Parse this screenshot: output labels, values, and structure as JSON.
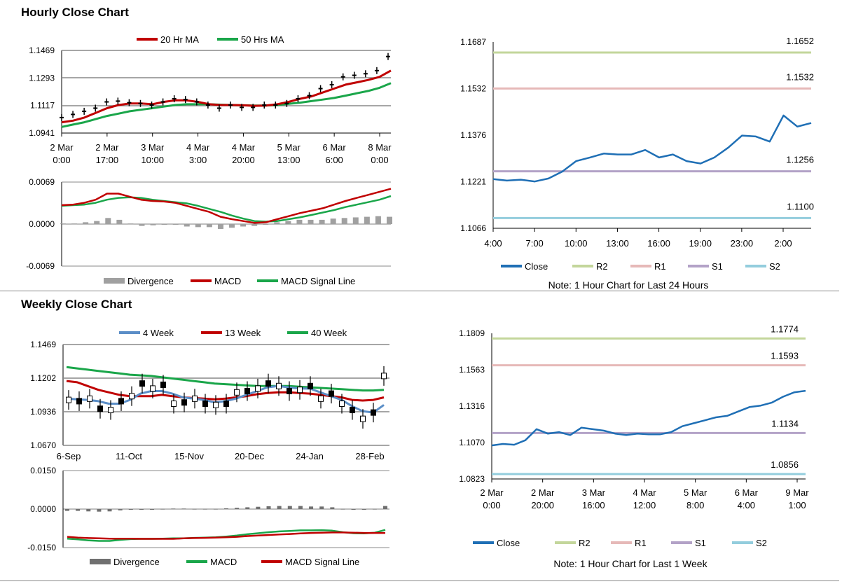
{
  "hourly_section": {
    "title": "Hourly Close Chart"
  },
  "weekly_section": {
    "title": "Weekly Close Chart"
  },
  "colors": {
    "green_ma": "#1aa64a",
    "red_ma": "#c00000",
    "close_blue": "#1f6fb5",
    "r2": "#c3d69b",
    "r1": "#e6b9b8",
    "s1": "#b3a2c7",
    "s2": "#93cddd",
    "grid": "#888888",
    "divergence": "#a0a0a0"
  },
  "chart_data": [
    {
      "id": "hourly_price",
      "type": "candlestick",
      "legend": [
        "20 Hr MA",
        "50 Hrs MA"
      ],
      "x_ticks": [
        [
          "2 Mar",
          "0:00"
        ],
        [
          "2 Mar",
          "17:00"
        ],
        [
          "3 Mar",
          "10:00"
        ],
        [
          "4 Mar",
          "3:00"
        ],
        [
          "4 Mar",
          "20:00"
        ],
        [
          "5 Mar",
          "13:00"
        ],
        [
          "6 Mar",
          "6:00"
        ],
        [
          "8 Mar",
          "0:00"
        ]
      ],
      "y_ticks": [
        "1.1469",
        "1.1293",
        "1.1117",
        "1.0941"
      ],
      "ylim": [
        1.0941,
        1.1469
      ],
      "close": [
        1.104,
        1.106,
        1.108,
        1.11,
        1.114,
        1.1145,
        1.1135,
        1.113,
        1.112,
        1.114,
        1.116,
        1.1155,
        1.114,
        1.112,
        1.11,
        1.112,
        1.1105,
        1.1105,
        1.112,
        1.112,
        1.113,
        1.116,
        1.118,
        1.1225,
        1.125,
        1.13,
        1.131,
        1.132,
        1.134,
        1.143
      ],
      "ma20": [
        1.101,
        1.102,
        1.104,
        1.107,
        1.11,
        1.112,
        1.113,
        1.113,
        1.1125,
        1.114,
        1.115,
        1.115,
        1.114,
        1.1125,
        1.112,
        1.112,
        1.1118,
        1.1115,
        1.1117,
        1.1125,
        1.114,
        1.116,
        1.1175,
        1.12,
        1.1225,
        1.125,
        1.1265,
        1.128,
        1.13,
        1.134
      ],
      "ma50": [
        1.098,
        1.0995,
        1.101,
        1.103,
        1.105,
        1.1065,
        1.108,
        1.109,
        1.11,
        1.111,
        1.112,
        1.1125,
        1.1125,
        1.1125,
        1.1122,
        1.112,
        1.1118,
        1.1117,
        1.1117,
        1.112,
        1.1128,
        1.1135,
        1.1145,
        1.1155,
        1.1165,
        1.118,
        1.1195,
        1.121,
        1.123,
        1.126
      ]
    },
    {
      "id": "hourly_macd",
      "type": "line",
      "legend": [
        "Divergence",
        "MACD",
        "MACD Signal Line"
      ],
      "y_ticks": [
        "0.0069",
        "0.0000",
        "-0.0069"
      ],
      "ylim": [
        -0.0069,
        0.0069
      ],
      "macd": [
        0.0031,
        0.0032,
        0.0035,
        0.004,
        0.005,
        0.005,
        0.0045,
        0.004,
        0.0038,
        0.0037,
        0.0035,
        0.003,
        0.0025,
        0.002,
        0.0012,
        0.0008,
        0.0005,
        0.0002,
        0.0003,
        0.0008,
        0.0013,
        0.0018,
        0.0022,
        0.0026,
        0.0032,
        0.0038,
        0.0043,
        0.0048,
        0.0053,
        0.0058
      ],
      "signal": [
        0.003,
        0.0031,
        0.0032,
        0.0035,
        0.004,
        0.0043,
        0.0044,
        0.0043,
        0.004,
        0.0038,
        0.0036,
        0.0034,
        0.003,
        0.0025,
        0.002,
        0.0014,
        0.0009,
        0.0005,
        0.0004,
        0.0005,
        0.0008,
        0.0011,
        0.0015,
        0.0019,
        0.0023,
        0.0028,
        0.0032,
        0.0036,
        0.004,
        0.0046
      ],
      "divergence": [
        0.0001,
        0.0001,
        0.0003,
        0.0005,
        0.001,
        0.0007,
        0.0001,
        -0.0003,
        -0.0002,
        -0.0001,
        -0.0001,
        -0.0004,
        -0.0005,
        -0.0005,
        -0.0008,
        -0.0006,
        -0.0004,
        -0.0003,
        -0.0001,
        0.0003,
        0.0005,
        0.0007,
        0.0007,
        0.0007,
        0.0009,
        0.001,
        0.0011,
        0.0012,
        0.0013,
        0.0012
      ]
    },
    {
      "id": "hourly_levels",
      "type": "line",
      "legend": [
        "Close",
        "R2",
        "R1",
        "S1",
        "S2"
      ],
      "note": "Note: 1 Hour Chart for Last 24 Hours",
      "x_ticks": [
        "4:00",
        "7:00",
        "10:00",
        "13:00",
        "16:00",
        "19:00",
        "23:00",
        "2:00"
      ],
      "y_ticks": [
        "1.1687",
        "1.1532",
        "1.1376",
        "1.1221",
        "1.1066"
      ],
      "ylim": [
        1.1066,
        1.1687
      ],
      "close": [
        1.123,
        1.1225,
        1.1228,
        1.1222,
        1.1232,
        1.1255,
        1.129,
        1.1302,
        1.1315,
        1.1312,
        1.1312,
        1.1327,
        1.1302,
        1.1312,
        1.129,
        1.1282,
        1.1302,
        1.1335,
        1.1375,
        1.1372,
        1.1355,
        1.1442,
        1.1405,
        1.1417
      ],
      "levels": [
        {
          "name": "R2",
          "value": "1.1652"
        },
        {
          "name": "R1",
          "value": "1.1532"
        },
        {
          "name": "S1",
          "value": "1.1256"
        },
        {
          "name": "S2",
          "value": "1.1100"
        }
      ]
    },
    {
      "id": "weekly_price",
      "type": "candlestick",
      "legend": [
        "4 Week",
        "13 Week",
        "40 Week"
      ],
      "x_ticks": [
        "6-Sep",
        "11-Oct",
        "15-Nov",
        "20-Dec",
        "24-Jan",
        "28-Feb"
      ],
      "y_ticks": [
        "1.1469",
        "1.1202",
        "1.0936",
        "1.0670"
      ],
      "ylim": [
        1.067,
        1.1469
      ],
      "close": [
        1.103,
        1.102,
        1.104,
        1.096,
        1.095,
        1.102,
        1.106,
        1.116,
        1.112,
        1.115,
        1.1,
        1.101,
        1.104,
        1.1,
        1.099,
        1.1,
        1.109,
        1.11,
        1.112,
        1.116,
        1.114,
        1.11,
        1.111,
        1.114,
        1.104,
        1.108,
        1.1,
        1.095,
        1.088,
        1.093,
        1.122
      ],
      "w4": [
        1.104,
        1.1035,
        1.103,
        1.102,
        1.1,
        1.1,
        1.103,
        1.108,
        1.11,
        1.11,
        1.108,
        1.105,
        1.104,
        1.103,
        1.101,
        1.102,
        1.104,
        1.107,
        1.11,
        1.113,
        1.114,
        1.113,
        1.112,
        1.112,
        1.109,
        1.106,
        1.103,
        1.098,
        1.094,
        1.093,
        1.099
      ],
      "w13": [
        1.118,
        1.117,
        1.114,
        1.111,
        1.109,
        1.107,
        1.106,
        1.106,
        1.106,
        1.107,
        1.106,
        1.105,
        1.1045,
        1.104,
        1.1035,
        1.104,
        1.105,
        1.106,
        1.1075,
        1.1085,
        1.109,
        1.109,
        1.1085,
        1.108,
        1.107,
        1.106,
        1.105,
        1.103,
        1.1025,
        1.103,
        1.105
      ],
      "w40": [
        1.129,
        1.128,
        1.127,
        1.126,
        1.125,
        1.124,
        1.123,
        1.1225,
        1.122,
        1.121,
        1.12,
        1.119,
        1.118,
        1.117,
        1.116,
        1.1155,
        1.115,
        1.1145,
        1.114,
        1.114,
        1.114,
        1.114,
        1.1135,
        1.113,
        1.1125,
        1.112,
        1.1115,
        1.111,
        1.1105,
        1.1105,
        1.111
      ]
    },
    {
      "id": "weekly_macd",
      "type": "line",
      "legend": [
        "Divergence",
        "MACD",
        "MACD Signal Line"
      ],
      "y_ticks": [
        "0.0150",
        "0.0000",
        "-0.0150"
      ],
      "ylim": [
        -0.015,
        0.015
      ],
      "macd": [
        -0.0115,
        -0.0118,
        -0.0122,
        -0.0124,
        -0.0124,
        -0.012,
        -0.0117,
        -0.0116,
        -0.0116,
        -0.0115,
        -0.0114,
        -0.0114,
        -0.0112,
        -0.0111,
        -0.011,
        -0.0107,
        -0.0103,
        -0.0098,
        -0.0094,
        -0.009,
        -0.0087,
        -0.0085,
        -0.0083,
        -0.0083,
        -0.0082,
        -0.0084,
        -0.009,
        -0.0094,
        -0.0095,
        -0.0092,
        -0.0081
      ],
      "signal": [
        -0.0108,
        -0.0111,
        -0.0113,
        -0.0114,
        -0.0115,
        -0.0115,
        -0.0115,
        -0.0116,
        -0.0116,
        -0.0116,
        -0.0116,
        -0.0114,
        -0.0113,
        -0.0112,
        -0.0111,
        -0.011,
        -0.0108,
        -0.0105,
        -0.0103,
        -0.0101,
        -0.0099,
        -0.0097,
        -0.0095,
        -0.0093,
        -0.0092,
        -0.0091,
        -0.0091,
        -0.0092,
        -0.0093,
        -0.0093,
        -0.0093
      ],
      "divergence": [
        -0.0007,
        -0.0007,
        -0.0009,
        -0.001,
        -0.0009,
        -0.0005,
        -0.0002,
        0.0,
        0.0,
        0.0001,
        0.0002,
        0.0002,
        0.0001,
        0.0001,
        0.0001,
        0.0003,
        0.0005,
        0.0007,
        0.0009,
        0.0011,
        0.0012,
        0.0012,
        0.0012,
        0.001,
        0.001,
        0.0007,
        0.0001,
        -0.0002,
        -0.0002,
        0.0001,
        0.0012
      ]
    },
    {
      "id": "weekly_levels",
      "type": "line",
      "legend": [
        "Close",
        "R2",
        "R1",
        "S1",
        "S2"
      ],
      "note": "Note: 1 Hour Chart for Last 1 Week",
      "x_ticks": [
        [
          "2 Mar",
          "0:00"
        ],
        [
          "2 Mar",
          "20:00"
        ],
        [
          "3 Mar",
          "16:00"
        ],
        [
          "4 Mar",
          "12:00"
        ],
        [
          "5 Mar",
          "8:00"
        ],
        [
          "6 Mar",
          "4:00"
        ],
        [
          "9 Mar",
          "1:00"
        ]
      ],
      "y_ticks": [
        "1.1809",
        "1.1563",
        "1.1316",
        "1.1070",
        "1.0823"
      ],
      "ylim": [
        1.0823,
        1.1809
      ],
      "close": [
        1.105,
        1.106,
        1.1055,
        1.1085,
        1.116,
        1.113,
        1.114,
        1.112,
        1.117,
        1.116,
        1.115,
        1.113,
        1.112,
        1.113,
        1.1125,
        1.1125,
        1.114,
        1.118,
        1.12,
        1.122,
        1.124,
        1.125,
        1.128,
        1.131,
        1.132,
        1.134,
        1.138,
        1.141,
        1.142
      ],
      "levels": [
        {
          "name": "R2",
          "value": "1.1774"
        },
        {
          "name": "R1",
          "value": "1.1593"
        },
        {
          "name": "S1",
          "value": "1.1134"
        },
        {
          "name": "S2",
          "value": "1.0856"
        }
      ]
    }
  ]
}
